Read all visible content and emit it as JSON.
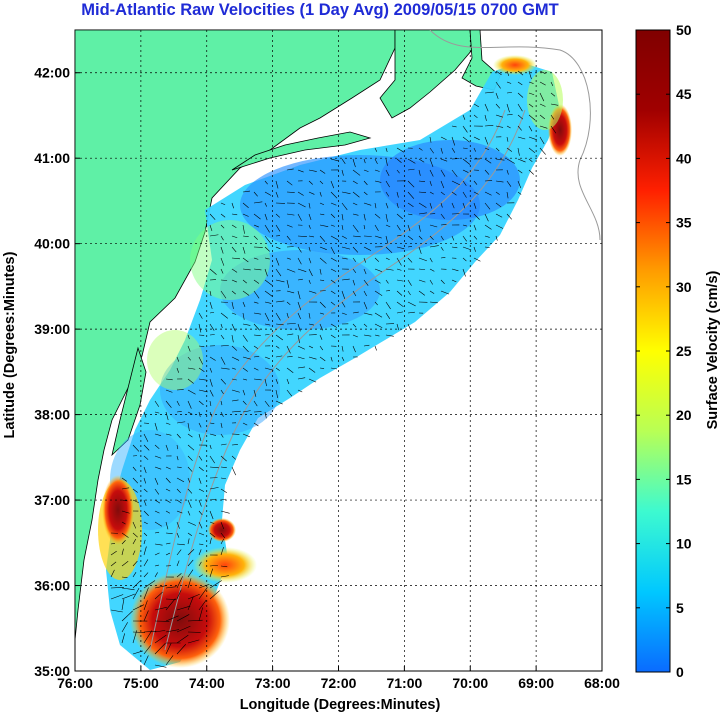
{
  "title": "Mid-Atlantic Raw Velocities (1 Day Avg) 2009/05/15 0700 GMT",
  "map": {
    "xlabel": "Longitude (Degrees:Minutes)",
    "ylabel": "Latitude (Degrees:Minutes)",
    "x_ticks": [
      {
        "label": "76:00",
        "value": -76
      },
      {
        "label": "75:00",
        "value": -75
      },
      {
        "label": "74:00",
        "value": -74
      },
      {
        "label": "73:00",
        "value": -73
      },
      {
        "label": "72:00",
        "value": -72
      },
      {
        "label": "71:00",
        "value": -71
      },
      {
        "label": "70:00",
        "value": -70
      },
      {
        "label": "69:00",
        "value": -69
      },
      {
        "label": "68:00",
        "value": -68
      }
    ],
    "y_ticks": [
      {
        "label": "35:00",
        "value": 35
      },
      {
        "label": "36:00",
        "value": 36
      },
      {
        "label": "37:00",
        "value": 37
      },
      {
        "label": "38:00",
        "value": 38
      },
      {
        "label": "39:00",
        "value": 39
      },
      {
        "label": "40:00",
        "value": 40
      },
      {
        "label": "41:00",
        "value": 41
      },
      {
        "label": "42:00",
        "value": 42
      }
    ],
    "lon_range": [
      -76,
      -68
    ],
    "lat_range": [
      35,
      42.5
    ],
    "grid": true,
    "land_color": "#5ff0a6",
    "water_bg_color": "#ffffff"
  },
  "colorbar": {
    "label": "Surface Velocity (cm/s)",
    "ticks": [
      "0",
      "5",
      "10",
      "15",
      "20",
      "25",
      "30",
      "35",
      "40",
      "45",
      "50"
    ],
    "range": [
      0,
      50
    ],
    "colors": [
      "#0a6bff",
      "#00c8ff",
      "#3dfad0",
      "#b8ff55",
      "#ffff00",
      "#ff9c00",
      "#ff2000",
      "#a00000",
      "#800000"
    ]
  }
}
